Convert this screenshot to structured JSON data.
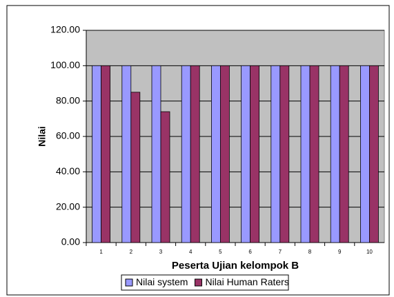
{
  "chart_data": {
    "type": "bar",
    "categories": [
      "1",
      "2",
      "3",
      "4",
      "5",
      "6",
      "7",
      "8",
      "9",
      "10"
    ],
    "series": [
      {
        "name": "Nilai system",
        "color": "#9999ff",
        "values": [
          100,
          100,
          100,
          100,
          100,
          100,
          100,
          100,
          100,
          100
        ]
      },
      {
        "name": "Nilai Human Raters",
        "color": "#993366",
        "values": [
          100,
          85,
          74,
          100,
          100,
          100,
          100,
          100,
          100,
          100
        ]
      }
    ],
    "xlabel": "Peserta Ujian kelompok B",
    "ylabel": "Nilai",
    "ylim": [
      0,
      120
    ],
    "yticks": [
      {
        "value": 0,
        "label": "0.00"
      },
      {
        "value": 20,
        "label": "20.00"
      },
      {
        "value": 40,
        "label": "40.00"
      },
      {
        "value": 60,
        "label": "60.00"
      },
      {
        "value": 80,
        "label": "80.00"
      },
      {
        "value": 100,
        "label": "100.00"
      },
      {
        "value": 120,
        "label": "120.00"
      }
    ],
    "grid": true,
    "plot_background": "#c0c0c0",
    "legend": "bottom"
  }
}
